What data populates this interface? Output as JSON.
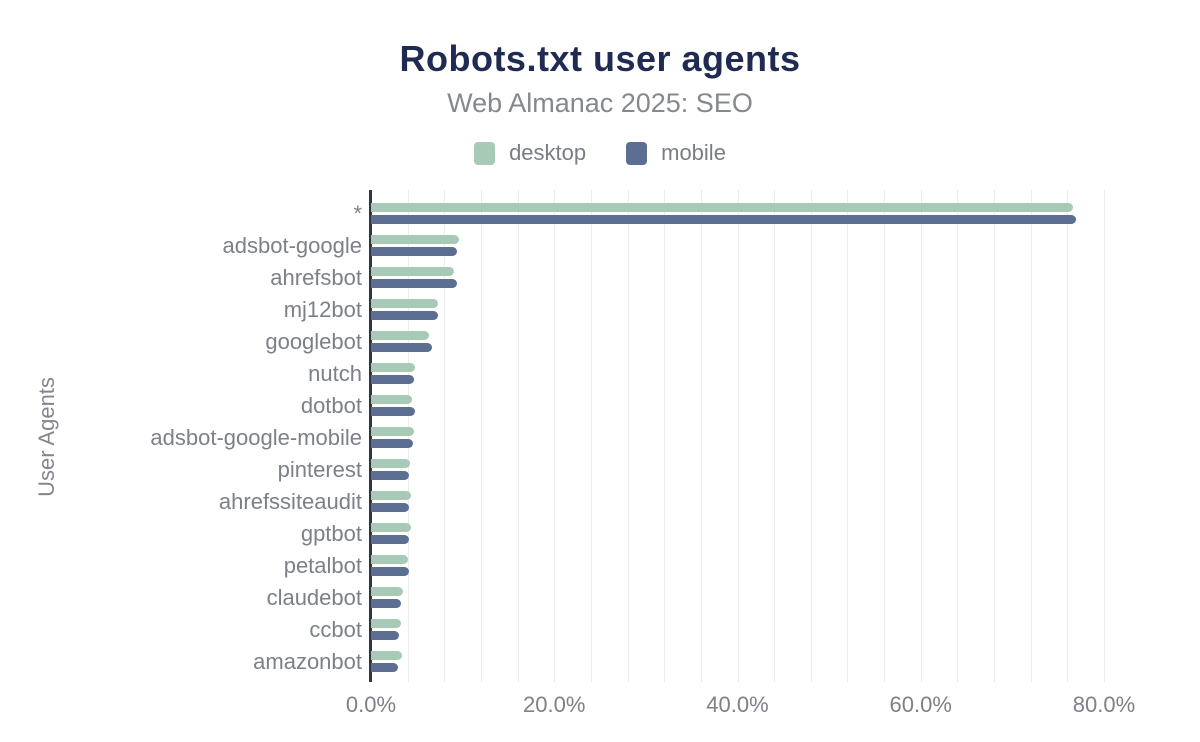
{
  "header": {
    "title": "Robots.txt user agents",
    "subtitle": "Web Almanac 2025: SEO"
  },
  "legend": {
    "items": [
      {
        "label": "desktop",
        "color": "#a6cab6"
      },
      {
        "label": "mobile",
        "color": "#5c6e92"
      }
    ]
  },
  "axes": {
    "y_title": "User Agents",
    "x_tick_labels": [
      "0.0%",
      "20.0%",
      "40.0%",
      "60.0%",
      "80.0%"
    ],
    "x_tick_values": [
      0,
      20,
      40,
      60,
      80
    ]
  },
  "chart_data": {
    "type": "bar",
    "orientation": "horizontal",
    "title": "Robots.txt user agents",
    "subtitle": "Web Almanac 2025: SEO",
    "xlabel": "",
    "ylabel": "User Agents",
    "xlim": [
      0,
      80
    ],
    "x_unit": "percent",
    "grid": true,
    "grid_step_percent": 4,
    "legend_position": "top",
    "categories": [
      "*",
      "adsbot-google",
      "ahrefsbot",
      "mj12bot",
      "googlebot",
      "nutch",
      "dotbot",
      "adsbot-google-mobile",
      "pinterest",
      "ahrefssiteaudit",
      "gptbot",
      "petalbot",
      "claudebot",
      "ccbot",
      "amazonbot"
    ],
    "series": [
      {
        "name": "desktop",
        "color": "#a6cab6",
        "values": [
          76.6,
          9.6,
          9.1,
          7.3,
          6.3,
          4.8,
          4.5,
          4.7,
          4.3,
          4.4,
          4.4,
          4.0,
          3.5,
          3.3,
          3.4
        ]
      },
      {
        "name": "mobile",
        "color": "#5c6e92",
        "values": [
          76.9,
          9.4,
          9.4,
          7.3,
          6.7,
          4.7,
          4.8,
          4.6,
          4.2,
          4.2,
          4.1,
          4.2,
          3.3,
          3.1,
          2.9
        ]
      }
    ]
  },
  "colors": {
    "background": "#ffffff",
    "title": "#1f2b53",
    "subtitle": "#85898e",
    "axis_line": "#33373d",
    "gridline": "#ececec",
    "tick_label": "#7c8188",
    "legend_label": "#797e84",
    "desktop_bar": "#a6cab6",
    "mobile_bar": "#5c6e92"
  }
}
